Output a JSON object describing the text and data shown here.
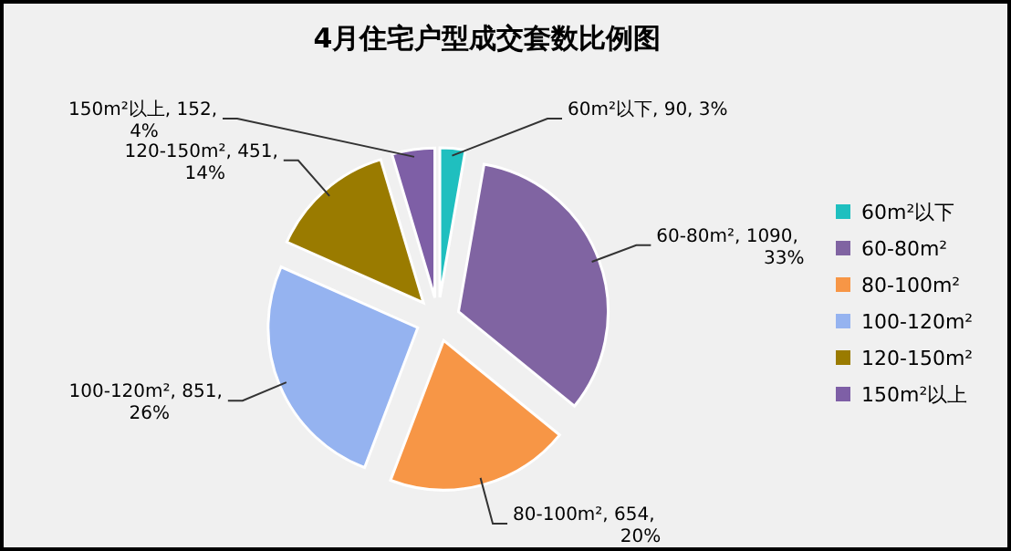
{
  "chart_data": {
    "type": "pie",
    "title": "4月住宅户型成交套数比例图",
    "categories": [
      "60m²以下",
      "60-80m²",
      "80-100m²",
      "100-120m²",
      "120-150m²",
      "150m²以上"
    ],
    "values": [
      90,
      1090,
      654,
      851,
      451,
      152
    ],
    "value_labels": [
      "60m²以下, 90, 3%",
      "60-80m², 1090, 33%",
      "80-100m², 654, 20%",
      "100-120m², 851, 26%",
      "120-150m², 451, 14%",
      "150m²以上, 152, 4%"
    ],
    "colors": [
      "#1fbfbf",
      "#8064a2",
      "#f79646",
      "#95b3f0",
      "#9a7b00",
      "#7e5fa6"
    ],
    "legend": "right"
  }
}
